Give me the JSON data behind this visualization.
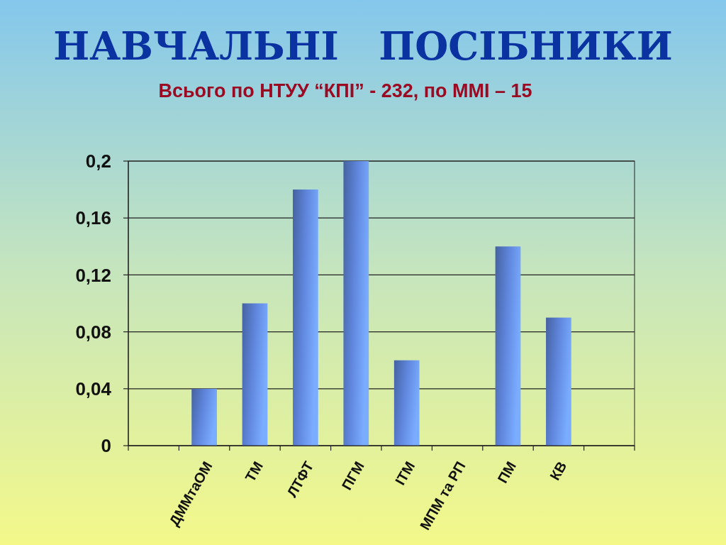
{
  "chart_data": {
    "type": "bar",
    "title": "НАВЧАЛЬНІ   ПОСІБНИКИ",
    "subtitle": "Всього по НТУУ “КПІ” - 232, по ММІ – 15",
    "categories": [
      null,
      "ДММтаОМ",
      "ТМ",
      "ЛТФТ",
      "ПГМ",
      "ІТМ",
      "МПМ та РП",
      "ПМ",
      "КВ",
      null
    ],
    "values": [
      null,
      0.04,
      0.1,
      0.18,
      0.2,
      0.06,
      0,
      0.14,
      0.09,
      null
    ],
    "color": "#5f86dc",
    "ylim": [
      0,
      0.2
    ],
    "yticks": [
      0,
      {
        "value": 0.04,
        "label": "0,04"
      },
      {
        "value": 0.08,
        "label": "0,08"
      },
      {
        "value": 0.12,
        "label": "0,12"
      },
      {
        "value": 0.16,
        "label": "0,16"
      },
      {
        "value": 0.2,
        "label": "0,2"
      }
    ],
    "grid": "y"
  }
}
